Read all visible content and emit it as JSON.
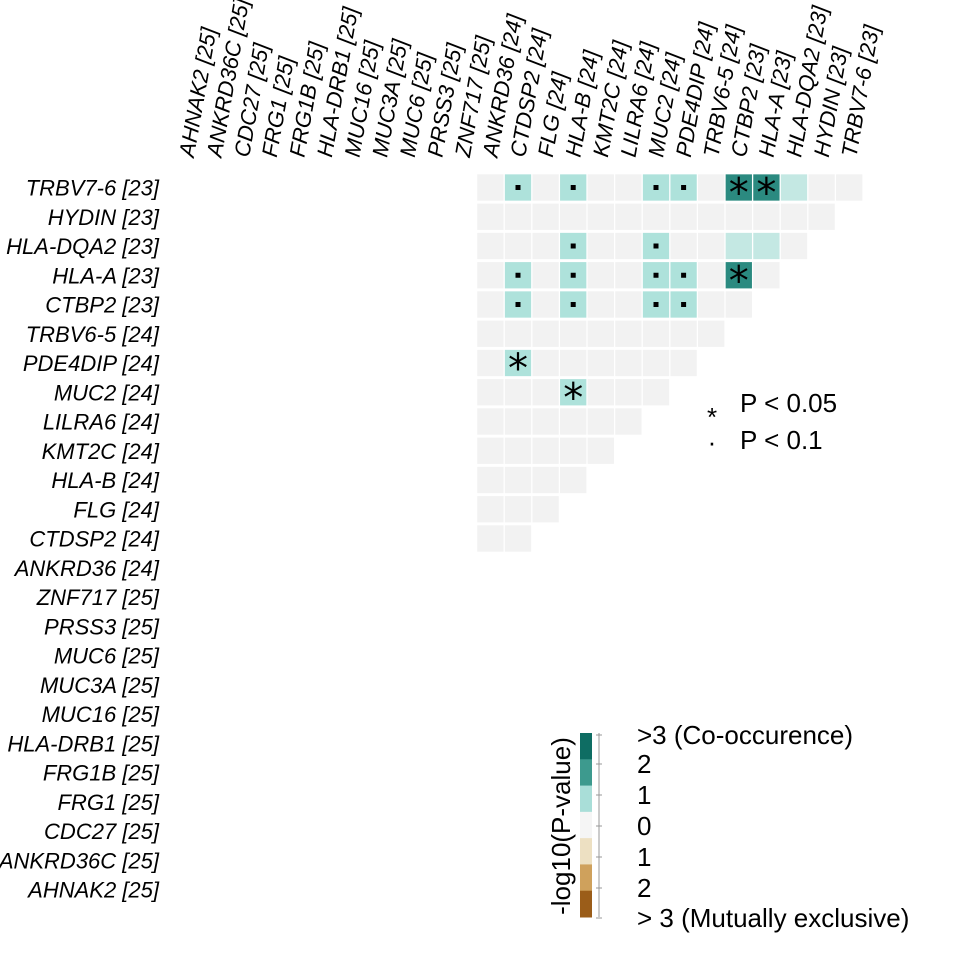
{
  "chart_data": {
    "type": "heatmap",
    "title": "",
    "genes": [
      "AHNAK2 [25]",
      "ANKRD36C [25]",
      "CDC27 [25]",
      "FRG1 [25]",
      "FRG1B [25]",
      "HLA-DRB1 [25]",
      "MUC16 [25]",
      "MUC3A [25]",
      "MUC6 [25]",
      "PRSS3 [25]",
      "ZNF717 [25]",
      "ANKRD36 [24]",
      "CTDSP2 [24]",
      "FLG [24]",
      "HLA-B [24]",
      "KMT2C [24]",
      "LILRA6 [24]",
      "MUC2 [24]",
      "PDE4DIP [24]",
      "TRBV6-5 [24]",
      "CTBP2 [23]",
      "HLA-A [23]",
      "HLA-DQA2 [23]",
      "HYDIN [23]",
      "TRBV7-6 [23]"
    ],
    "row_order": [
      "TRBV7-6 [23]",
      "HYDIN [23]",
      "HLA-DQA2 [23]",
      "HLA-A [23]",
      "CTBP2 [23]",
      "TRBV6-5 [24]",
      "PDE4DIP [24]",
      "MUC2 [24]",
      "LILRA6 [24]",
      "KMT2C [24]",
      "HLA-B [24]",
      "FLG [24]",
      "CTDSP2 [24]",
      "ANKRD36 [24]",
      "ZNF717 [25]",
      "PRSS3 [25]",
      "MUC6 [25]",
      "MUC3A [25]",
      "MUC16 [25]",
      "HLA-DRB1 [25]",
      "FRG1B [25]",
      "FRG1 [25]",
      "CDC27 [25]",
      "ANKRD36C [25]",
      "AHNAK2 [25]"
    ],
    "value_label": "-log10(P-value)",
    "value_range": [
      -3,
      3
    ],
    "visible_block": {
      "row_genes_first": 13,
      "col_start": "ANKRD36 [24]"
    },
    "cells": [
      {
        "row": "TRBV7-6 [23]",
        "col": "CTDSP2 [24]",
        "value": 1.1,
        "mark": "P < 0.1"
      },
      {
        "row": "TRBV7-6 [23]",
        "col": "HLA-B [24]",
        "value": 1.1,
        "mark": "P < 0.1"
      },
      {
        "row": "TRBV7-6 [23]",
        "col": "MUC2 [24]",
        "value": 1.1,
        "mark": "P < 0.1"
      },
      {
        "row": "TRBV7-6 [23]",
        "col": "PDE4DIP [24]",
        "value": 1.1,
        "mark": "P < 0.1"
      },
      {
        "row": "TRBV7-6 [23]",
        "col": "CTBP2 [23]",
        "value": 3.0,
        "mark": "P < 0.05"
      },
      {
        "row": "TRBV7-6 [23]",
        "col": "HLA-A [23]",
        "value": 3.0,
        "mark": "P < 0.05"
      },
      {
        "row": "TRBV7-6 [23]",
        "col": "HLA-DQA2 [23]",
        "value": 0.9,
        "mark": ""
      },
      {
        "row": "HLA-DQA2 [23]",
        "col": "HLA-B [24]",
        "value": 1.1,
        "mark": "P < 0.1"
      },
      {
        "row": "HLA-DQA2 [23]",
        "col": "MUC2 [24]",
        "value": 1.1,
        "mark": "P < 0.1"
      },
      {
        "row": "HLA-DQA2 [23]",
        "col": "CTBP2 [23]",
        "value": 0.8,
        "mark": ""
      },
      {
        "row": "HLA-DQA2 [23]",
        "col": "HLA-A [23]",
        "value": 0.8,
        "mark": ""
      },
      {
        "row": "HLA-A [23]",
        "col": "CTDSP2 [24]",
        "value": 1.1,
        "mark": "P < 0.1"
      },
      {
        "row": "HLA-A [23]",
        "col": "HLA-B [24]",
        "value": 1.1,
        "mark": "P < 0.1"
      },
      {
        "row": "HLA-A [23]",
        "col": "MUC2 [24]",
        "value": 1.1,
        "mark": "P < 0.1"
      },
      {
        "row": "HLA-A [23]",
        "col": "PDE4DIP [24]",
        "value": 1.1,
        "mark": "P < 0.1"
      },
      {
        "row": "HLA-A [23]",
        "col": "CTBP2 [23]",
        "value": 3.0,
        "mark": "P < 0.05"
      },
      {
        "row": "CTBP2 [23]",
        "col": "CTDSP2 [24]",
        "value": 1.1,
        "mark": "P < 0.1"
      },
      {
        "row": "CTBP2 [23]",
        "col": "HLA-B [24]",
        "value": 1.1,
        "mark": "P < 0.1"
      },
      {
        "row": "CTBP2 [23]",
        "col": "MUC2 [24]",
        "value": 1.1,
        "mark": "P < 0.1"
      },
      {
        "row": "CTBP2 [23]",
        "col": "PDE4DIP [24]",
        "value": 1.1,
        "mark": "P < 0.1"
      },
      {
        "row": "PDE4DIP [24]",
        "col": "CTDSP2 [24]",
        "value": 1.4,
        "mark": "P < 0.05"
      },
      {
        "row": "MUC2 [24]",
        "col": "HLA-B [24]",
        "value": 1.4,
        "mark": "P < 0.05"
      }
    ],
    "legend": {
      "marks": [
        {
          "symbol": "*",
          "label": "P < 0.05"
        },
        {
          "symbol": "·",
          "label": "P < 0.1"
        }
      ],
      "colorbar": {
        "title": "-log10(P-value)",
        "tick_labels": [
          ">3 (Co-occurence)",
          "2",
          "1",
          "0",
          "1",
          "2",
          "> 3 (Mutually exclusive)"
        ],
        "colors": [
          "#0e6d63",
          "#3d9a8e",
          "#a9ded8",
          "#f5f5f5",
          "#ede0c2",
          "#cfa15c",
          "#9b5d19"
        ]
      }
    },
    "colors": {
      "neutral": "#f2f2f2",
      "co_occurrence_weak": "#c4e8e3",
      "co_occurrence_mid": "#aee2db",
      "co_occurrence_strong": "#2b8a80"
    }
  }
}
